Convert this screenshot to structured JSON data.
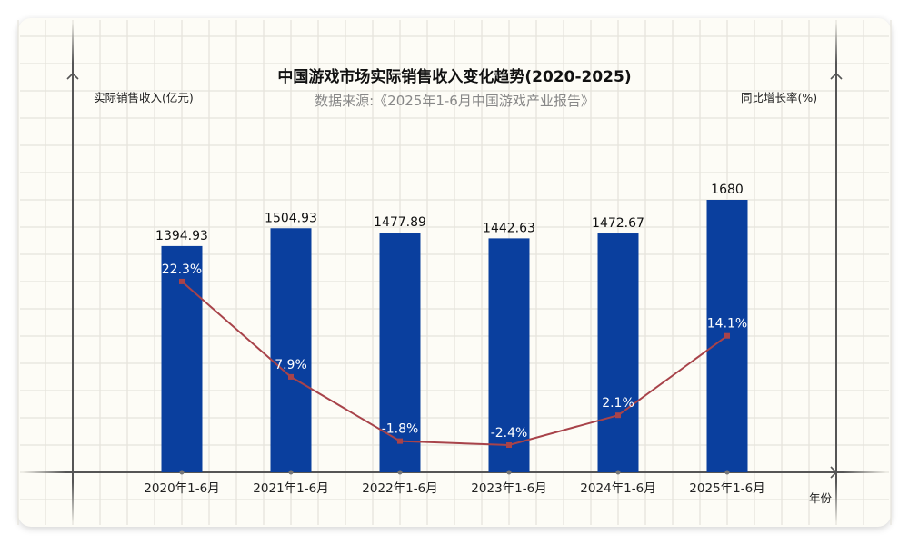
{
  "chart_data": {
    "type": "bar+line",
    "title": "中国游戏市场实际销售收入变化趋势(2020-2025)",
    "subtitle": "数据来源:《2025年1-6月中国游戏产业报告》",
    "xlabel": "年份",
    "ylabel_left": "实际销售收入(亿元)",
    "ylabel_right": "同比增长率(%)",
    "categories": [
      "2020年1-6月",
      "2021年1-6月",
      "2022年1-6月",
      "2023年1-6月",
      "2024年1-6月",
      "2025年1-6月"
    ],
    "series": [
      {
        "type": "bar",
        "axis": "left",
        "values": [
          1394.93,
          1504.93,
          1477.89,
          1442.63,
          1472.67,
          1680
        ],
        "labels": [
          "1394.93",
          "1504.93",
          "1477.89",
          "1442.63",
          "1472.67",
          "1680"
        ],
        "color": "#0a3f9e"
      },
      {
        "type": "line",
        "axis": "right",
        "values": [
          22.3,
          7.9,
          -1.8,
          -2.4,
          2.1,
          14.1
        ],
        "labels": [
          "22.3%",
          "7.9%",
          "-1.8%",
          "-2.4%",
          "2.1%",
          "14.1%"
        ],
        "color": "#a8434a"
      }
    ],
    "grid": true
  }
}
